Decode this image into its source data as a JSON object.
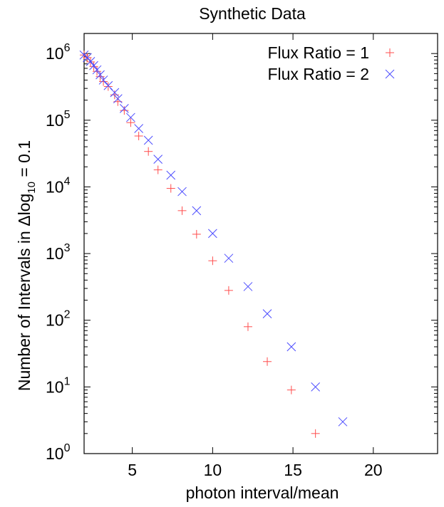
{
  "chart_data": {
    "type": "scatter",
    "title": "Synthetic Data",
    "xlabel": "photon interval/mean",
    "ylabel": {
      "prefix": "Number of Intervals in Δlog",
      "subscript": "10",
      "suffix": " = 0.1"
    },
    "x_scale": "linear",
    "y_scale": "log",
    "xlim": [
      2,
      24
    ],
    "ylim": [
      1,
      2000000
    ],
    "x_ticks": [
      {
        "value": 5,
        "label": "5"
      },
      {
        "value": 10,
        "label": "10"
      },
      {
        "value": 15,
        "label": "15"
      },
      {
        "value": 20,
        "label": "20"
      }
    ],
    "y_ticks": [
      {
        "value": 1,
        "base": "10",
        "exp": "0"
      },
      {
        "value": 10,
        "base": "10",
        "exp": "1"
      },
      {
        "value": 100,
        "base": "10",
        "exp": "2"
      },
      {
        "value": 1000,
        "base": "10",
        "exp": "3"
      },
      {
        "value": 10000,
        "base": "10",
        "exp": "4"
      },
      {
        "value": 100000,
        "base": "10",
        "exp": "5"
      },
      {
        "value": 1000000,
        "base": "10",
        "exp": "6"
      }
    ],
    "grid": false,
    "legend_position": "top-right",
    "series": [
      {
        "name": "Flux Ratio = 1",
        "marker": "plus",
        "color": "#ff4d4d",
        "points": [
          [
            2.0,
            950000
          ],
          [
            2.2,
            870000
          ],
          [
            2.4,
            750000
          ],
          [
            2.6,
            640000
          ],
          [
            2.8,
            540000
          ],
          [
            3.0,
            450000
          ],
          [
            3.2,
            380000
          ],
          [
            3.5,
            320000
          ],
          [
            3.9,
            240000
          ],
          [
            4.1,
            190000
          ],
          [
            4.5,
            140000
          ],
          [
            4.9,
            92000
          ],
          [
            5.4,
            58000
          ],
          [
            6.0,
            34000
          ],
          [
            6.6,
            18000
          ],
          [
            7.4,
            9500
          ],
          [
            8.1,
            4400
          ],
          [
            9.0,
            1950
          ],
          [
            10.0,
            780
          ],
          [
            11.0,
            280
          ],
          [
            12.2,
            80
          ],
          [
            13.4,
            24
          ],
          [
            14.9,
            9
          ],
          [
            16.4,
            2
          ]
        ]
      },
      {
        "name": "Flux Ratio = 2",
        "marker": "cross",
        "color": "#4d4dff",
        "points": [
          [
            2.0,
            950000
          ],
          [
            2.2,
            870000
          ],
          [
            2.4,
            760000
          ],
          [
            2.6,
            660000
          ],
          [
            2.8,
            570000
          ],
          [
            3.0,
            480000
          ],
          [
            3.2,
            400000
          ],
          [
            3.5,
            330000
          ],
          [
            3.9,
            260000
          ],
          [
            4.1,
            210000
          ],
          [
            4.5,
            150000
          ],
          [
            4.9,
            110000
          ],
          [
            5.4,
            75000
          ],
          [
            6.0,
            50000
          ],
          [
            6.6,
            26000
          ],
          [
            7.4,
            15000
          ],
          [
            8.1,
            8500
          ],
          [
            9.0,
            4400
          ],
          [
            10.0,
            2000
          ],
          [
            11.0,
            850
          ],
          [
            12.2,
            320
          ],
          [
            13.4,
            125
          ],
          [
            14.9,
            40
          ],
          [
            16.4,
            10
          ],
          [
            18.1,
            3
          ]
        ]
      }
    ]
  }
}
